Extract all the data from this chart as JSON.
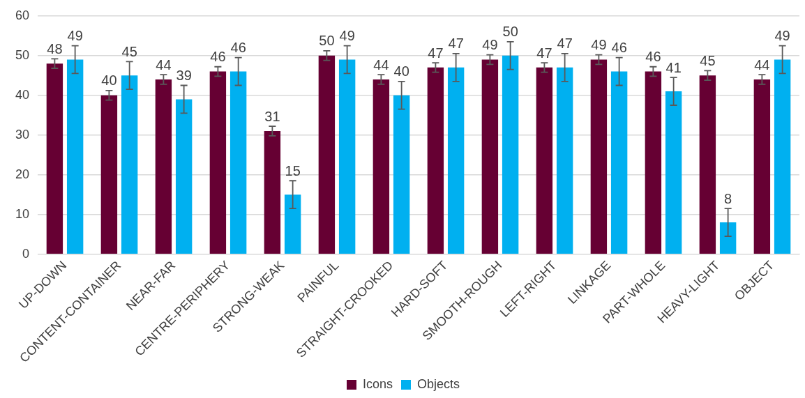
{
  "chart_data": {
    "type": "bar",
    "categories": [
      "UP-DOWN",
      "CONTENT-CONTAINER",
      "NEAR-FAR",
      "CENTRE-PERIPHERY",
      "STRONG-WEAK",
      "PAINFUL",
      "STRAIGHT-CROOKED",
      "HARD-SOFT",
      "SMOOTH-ROUGH",
      "LEFT-RIGHT",
      "LINKAGE",
      "PART-WHOLE",
      "HEAVY-LIGHT",
      "OBJECT"
    ],
    "series": [
      {
        "name": "Icons",
        "color": "#660033",
        "values": [
          48,
          40,
          44,
          46,
          31,
          50,
          44,
          47,
          49,
          47,
          49,
          46,
          45,
          44
        ],
        "errors": [
          1.2,
          1.2,
          1.2,
          1.2,
          1.2,
          1.2,
          1.2,
          1.2,
          1.2,
          1.2,
          1.2,
          1.2,
          1.2,
          1.2
        ]
      },
      {
        "name": "Objects",
        "color": "#00b0f0",
        "values": [
          49,
          45,
          39,
          46,
          15,
          49,
          40,
          47,
          50,
          47,
          46,
          41,
          8,
          49
        ],
        "errors": [
          3.5,
          3.5,
          3.5,
          3.5,
          3.5,
          3.5,
          3.5,
          3.5,
          3.5,
          3.5,
          3.5,
          3.5,
          3.5,
          3.5
        ]
      }
    ],
    "ylim": [
      0,
      60
    ],
    "yticks": [
      0,
      10,
      20,
      30,
      40,
      50,
      60
    ],
    "grid": "y",
    "legend": "bottom",
    "data_labels": true
  }
}
